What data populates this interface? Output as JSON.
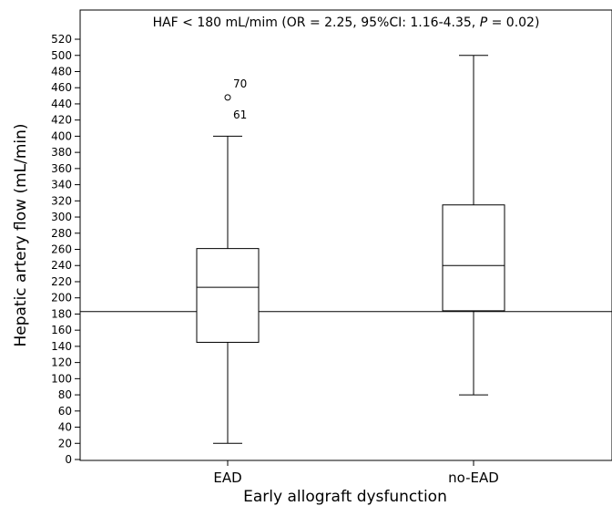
{
  "chart_data": {
    "type": "box",
    "title_parts": [
      {
        "text": "HAF < 180 mL/mim (OR = 2.25, 95%CI: 1.16-4.35, ",
        "italic": false
      },
      {
        "text": "P",
        "italic": true
      },
      {
        "text": " = 0.02)",
        "italic": false
      }
    ],
    "xlabel": "Early allograft dysfunction",
    "ylabel": "Hepatic artery flow (mL/min)",
    "ylim": [
      0,
      530
    ],
    "yticks": [
      0,
      20,
      40,
      60,
      80,
      100,
      120,
      140,
      160,
      180,
      200,
      220,
      240,
      260,
      280,
      300,
      320,
      340,
      360,
      380,
      400,
      420,
      440,
      460,
      480,
      500,
      520
    ],
    "reference_line": 183,
    "categories": [
      "EAD",
      "no-EAD"
    ],
    "boxes": [
      {
        "category": "EAD",
        "whisker_low": 20,
        "q1": 145,
        "median": 213,
        "q3": 261,
        "whisker_high": 400
      },
      {
        "category": "no-EAD",
        "whisker_low": 80,
        "q1": 184,
        "median": 240,
        "q3": 315,
        "whisker_high": 500
      }
    ],
    "outliers": [
      {
        "category": "EAD",
        "value": 448,
        "labels": [
          "70",
          "61"
        ]
      }
    ],
    "grid": false,
    "legend": "none"
  }
}
